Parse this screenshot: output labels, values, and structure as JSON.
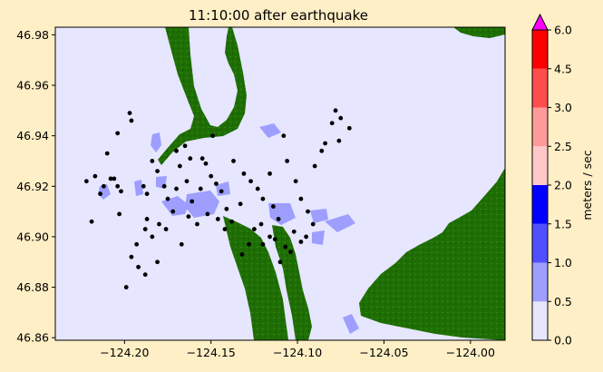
{
  "chart_data": {
    "type": "heatmap",
    "title": "11:10:00 after earthquake",
    "xlim": [
      -124.24,
      -123.98
    ],
    "ylim": [
      46.859,
      46.983
    ],
    "x_ticks": [
      -124.2,
      -124.15,
      -124.1,
      -124.05,
      -124.0
    ],
    "x_tick_labels": [
      "−124.20",
      "−124.15",
      "−124.10",
      "−124.05",
      "−124.00"
    ],
    "y_ticks": [
      46.86,
      46.88,
      46.9,
      46.92,
      46.94,
      46.96,
      46.98
    ],
    "y_tick_labels": [
      "46.86",
      "46.88",
      "46.90",
      "46.92",
      "46.94",
      "46.96",
      "46.98"
    ],
    "colorbar": {
      "label": "meters / sec",
      "levels": [
        0.0,
        0.5,
        1.0,
        1.5,
        2.0,
        2.5,
        3.0,
        4.5,
        6.0
      ],
      "level_labels": [
        "0.0",
        "0.5",
        "1.0",
        "1.5",
        "2.0",
        "2.5",
        "3.0",
        "4.5",
        "6.0"
      ],
      "colors": [
        "#e6e6ff",
        "#9e9eff",
        "#5050ff",
        "#0000ff",
        "#ffc8c8",
        "#ff9a9a",
        "#ff4d4d",
        "#ff0000"
      ],
      "extend_color": "#ff00ff"
    },
    "colors": {
      "land": "#1f6e05",
      "water": "#e6e6ff",
      "gauge": "#000000",
      "background": "#ffefc6"
    },
    "gauges": [
      [
        -124.222,
        46.922
      ],
      [
        -124.217,
        46.924
      ],
      [
        -124.219,
        46.906
      ],
      [
        -124.214,
        46.917
      ],
      [
        -124.212,
        46.92
      ],
      [
        -124.208,
        46.923
      ],
      [
        -124.206,
        46.923
      ],
      [
        -124.204,
        46.92
      ],
      [
        -124.202,
        46.918
      ],
      [
        -124.203,
        46.909
      ],
      [
        -124.21,
        46.933
      ],
      [
        -124.204,
        46.941
      ],
      [
        -124.197,
        46.949
      ],
      [
        -124.196,
        46.946
      ],
      [
        -124.189,
        46.92
      ],
      [
        -124.187,
        46.917
      ],
      [
        -124.184,
        46.93
      ],
      [
        -124.181,
        46.926
      ],
      [
        -124.177,
        46.92
      ],
      [
        -124.17,
        46.934
      ],
      [
        -124.168,
        46.928
      ],
      [
        -124.164,
        46.922
      ],
      [
        -124.165,
        46.936
      ],
      [
        -124.162,
        46.931
      ],
      [
        -124.155,
        46.931
      ],
      [
        -124.153,
        46.929
      ],
      [
        -124.15,
        46.924
      ],
      [
        -124.147,
        46.921
      ],
      [
        -124.144,
        46.918
      ],
      [
        -124.149,
        46.94
      ],
      [
        -124.137,
        46.93
      ],
      [
        -124.131,
        46.925
      ],
      [
        -124.127,
        46.922
      ],
      [
        -124.123,
        46.919
      ],
      [
        -124.12,
        46.915
      ],
      [
        -124.116,
        46.925
      ],
      [
        -124.114,
        46.912
      ],
      [
        -124.111,
        46.907
      ],
      [
        -124.106,
        46.93
      ],
      [
        -124.101,
        46.922
      ],
      [
        -124.098,
        46.915
      ],
      [
        -124.094,
        46.91
      ],
      [
        -124.09,
        46.928
      ],
      [
        -124.084,
        46.937
      ],
      [
        -124.08,
        46.945
      ],
      [
        -124.078,
        46.95
      ],
      [
        -124.075,
        46.947
      ],
      [
        -124.07,
        46.943
      ],
      [
        -124.076,
        46.938
      ],
      [
        -124.086,
        46.934
      ],
      [
        -124.108,
        46.94
      ],
      [
        -124.102,
        46.902
      ],
      [
        -124.098,
        46.898
      ],
      [
        -124.104,
        46.894
      ],
      [
        -124.11,
        46.89
      ],
      [
        -124.116,
        46.9
      ],
      [
        -124.12,
        46.897
      ],
      [
        -124.125,
        46.903
      ],
      [
        -124.128,
        46.897
      ],
      [
        -124.132,
        46.893
      ],
      [
        -124.138,
        46.906
      ],
      [
        -124.142,
        46.903
      ],
      [
        -124.146,
        46.907
      ],
      [
        -124.152,
        46.909
      ],
      [
        -124.158,
        46.905
      ],
      [
        -124.163,
        46.908
      ],
      [
        -124.167,
        46.897
      ],
      [
        -124.172,
        46.91
      ],
      [
        -124.176,
        46.903
      ],
      [
        -124.18,
        46.905
      ],
      [
        -124.184,
        46.9
      ],
      [
        -124.188,
        46.903
      ],
      [
        -124.193,
        46.897
      ],
      [
        -124.196,
        46.892
      ],
      [
        -124.199,
        46.88
      ],
      [
        -124.192,
        46.888
      ],
      [
        -124.188,
        46.885
      ],
      [
        -124.181,
        46.89
      ],
      [
        -124.175,
        46.915
      ],
      [
        -124.17,
        46.919
      ],
      [
        -124.161,
        46.914
      ],
      [
        -124.156,
        46.919
      ],
      [
        -124.141,
        46.911
      ],
      [
        -124.133,
        46.913
      ],
      [
        -124.121,
        46.905
      ],
      [
        -124.113,
        46.899
      ],
      [
        -124.107,
        46.896
      ],
      [
        -124.095,
        46.9
      ],
      [
        -124.091,
        46.905
      ],
      [
        -124.187,
        46.907
      ]
    ]
  }
}
